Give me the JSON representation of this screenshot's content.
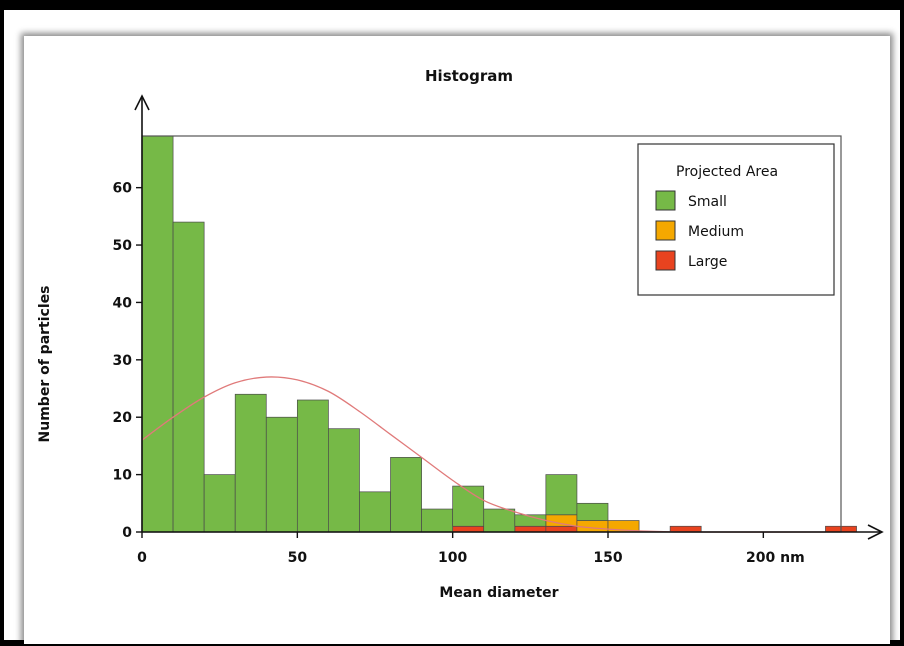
{
  "chart_data": {
    "type": "bar",
    "title": "Histogram",
    "xlabel": "Mean diameter",
    "ylabel": "Number of particles",
    "xlim": [
      0,
      225
    ],
    "ylim": [
      0,
      69
    ],
    "bin_width": 10,
    "x_ticks": [
      0,
      50,
      100,
      150,
      200
    ],
    "x_tick_labels": [
      "0",
      "50",
      "100",
      "150",
      "200 nm"
    ],
    "y_ticks": [
      0,
      10,
      20,
      30,
      40,
      50,
      60
    ],
    "y_tick_labels": [
      "0",
      "10",
      "20",
      "30",
      "40",
      "50",
      "60"
    ],
    "legend": {
      "title": "Projected Area",
      "position": "top-right",
      "entries": [
        "Small",
        "Medium",
        "Large"
      ]
    },
    "series": [
      {
        "name": "Small",
        "color": "#76b947",
        "bins": [
          [
            0,
            69
          ],
          [
            10,
            54
          ],
          [
            20,
            10
          ],
          [
            30,
            24
          ],
          [
            40,
            20
          ],
          [
            50,
            23
          ],
          [
            60,
            18
          ],
          [
            70,
            7
          ],
          [
            80,
            13
          ],
          [
            90,
            4
          ],
          [
            100,
            7
          ],
          [
            110,
            4
          ],
          [
            120,
            2
          ],
          [
            130,
            7
          ],
          [
            140,
            3
          ]
        ]
      },
      {
        "name": "Medium",
        "color": "#f5a800",
        "bins": [
          [
            130,
            2
          ],
          [
            140,
            2
          ],
          [
            150,
            2
          ]
        ]
      },
      {
        "name": "Large",
        "color": "#e8431f",
        "bins": [
          [
            100,
            1
          ],
          [
            120,
            1
          ],
          [
            130,
            1
          ],
          [
            170,
            1
          ],
          [
            220,
            1
          ]
        ]
      }
    ],
    "fit_curve": {
      "type": "normal",
      "color": "#e07a7a",
      "points": [
        [
          0,
          16
        ],
        [
          10,
          20
        ],
        [
          20,
          23.5
        ],
        [
          30,
          26
        ],
        [
          40,
          27
        ],
        [
          50,
          26.5
        ],
        [
          60,
          24.5
        ],
        [
          70,
          21
        ],
        [
          80,
          17
        ],
        [
          90,
          13
        ],
        [
          100,
          9
        ],
        [
          110,
          5.5
        ],
        [
          120,
          3.5
        ],
        [
          130,
          2
        ],
        [
          140,
          1
        ],
        [
          150,
          0.5
        ],
        [
          160,
          0.2
        ],
        [
          175,
          0
        ],
        [
          220,
          0
        ]
      ]
    }
  }
}
